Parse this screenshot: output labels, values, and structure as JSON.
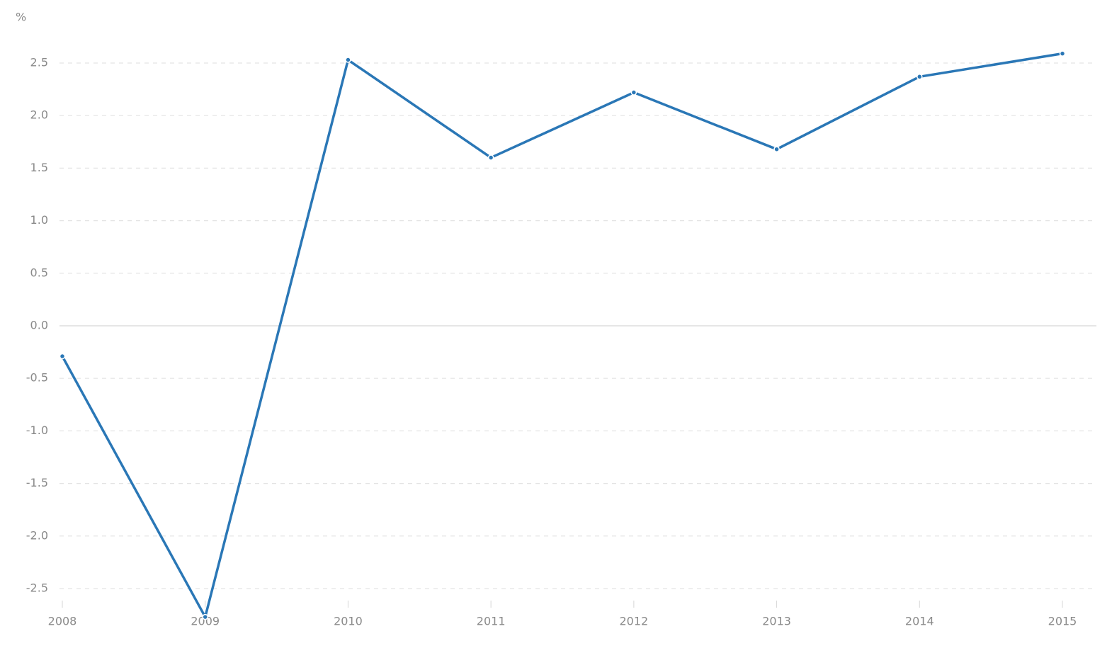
{
  "chart_data": {
    "type": "line",
    "y_label": "%",
    "x": [
      2008,
      2009,
      2010,
      2011,
      2012,
      2013,
      2014,
      2015
    ],
    "series": [
      {
        "color": "#2a77b6",
        "values": [
          -0.29,
          -2.77,
          2.53,
          1.6,
          2.22,
          1.68,
          2.37,
          2.59
        ]
      }
    ],
    "xlim": [
      2008,
      2015
    ],
    "xticks": [
      2008,
      2009,
      2010,
      2011,
      2012,
      2013,
      2014,
      2015
    ],
    "ylim": [
      -2.8,
      2.8
    ],
    "yticks": [
      -2.5,
      {
        "value": -2,
        "label": "-2.0"
      },
      -1.5,
      {
        "value": -1,
        "label": "-1.0"
      },
      -0.5,
      {
        "value": 0,
        "label": "0.0"
      },
      0.5,
      {
        "value": 1,
        "label": "1.0"
      },
      1.5,
      {
        "value": 2,
        "label": "2.0"
      },
      2.5
    ],
    "grid": true
  }
}
